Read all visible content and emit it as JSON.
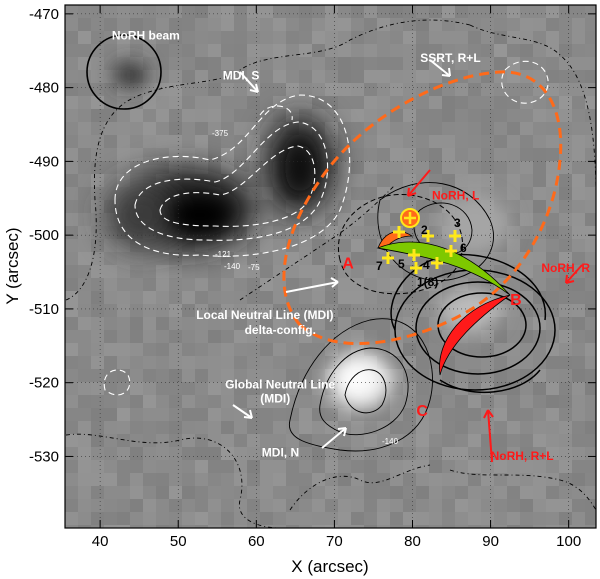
{
  "chart_data": {
    "type": "heatmap",
    "xlabel": "X (arcsec)",
    "ylabel": "Y (arcsec)",
    "xlim": [
      35.5,
      103.5
    ],
    "ylim": [
      -539.7,
      -468.8
    ],
    "xticks": [
      40,
      50,
      60,
      70,
      80,
      90,
      100
    ],
    "yticks": [
      -470,
      -480,
      -490,
      -500,
      -510,
      -520,
      -530
    ],
    "grid": true,
    "colors": {
      "mdi_background": "#8a8a8a",
      "orange_contour": "#ff6a1a",
      "green_loop": "#7ec800",
      "red_loop": "#ff1a1a",
      "yellow_markers": "#ffe81a"
    },
    "annotations": [
      {
        "id": "norh_beam",
        "text": "NoRH beam",
        "x": 41.5,
        "y": -473.5,
        "color": "white"
      },
      {
        "id": "mdi_s",
        "text": "MDI, S",
        "x": 55.7,
        "y": -478.9,
        "color": "white"
      },
      {
        "id": "ssrt",
        "text": "SSRT, R+L",
        "x": 81.0,
        "y": -476.5,
        "color": "white"
      },
      {
        "id": "norh_l",
        "text": "NoRH, L",
        "x": 82.5,
        "y": -495.2,
        "color": "red"
      },
      {
        "id": "norh_r",
        "text": "NoRH, R",
        "x": 96.5,
        "y": -505.0,
        "color": "red"
      },
      {
        "id": "local_nl_1",
        "text": "Local Neutral Line (MDI)",
        "x": 52.3,
        "y": -511.4,
        "color": "white"
      },
      {
        "id": "local_nl_2",
        "text": "delta-config.",
        "x": 58.5,
        "y": -513.4,
        "color": "white"
      },
      {
        "id": "global_nl_1",
        "text": "Global Neutral Line",
        "x": 56.0,
        "y": -520.8,
        "color": "white"
      },
      {
        "id": "global_nl_2",
        "text": "(MDI)",
        "x": 60.5,
        "y": -522.7,
        "color": "white"
      },
      {
        "id": "mdi_n",
        "text": "MDI, N",
        "x": 60.7,
        "y": -530.0,
        "color": "white"
      },
      {
        "id": "norh_rl",
        "text": "NoRH, R+L",
        "x": 90.0,
        "y": -530.5,
        "color": "red"
      }
    ],
    "loop_labels": [
      {
        "text": "A",
        "x": 71.0,
        "y": -504.5
      },
      {
        "text": "B",
        "x": 92.5,
        "y": -509.5
      },
      {
        "text": "C",
        "x": 80.5,
        "y": -524.5
      }
    ],
    "marker_numbers": [
      "1(8)",
      "2",
      "3",
      "4",
      "5",
      "6",
      "7"
    ],
    "contour_labels": [
      "-375",
      "-121",
      "-140",
      "-140",
      "-75"
    ]
  }
}
